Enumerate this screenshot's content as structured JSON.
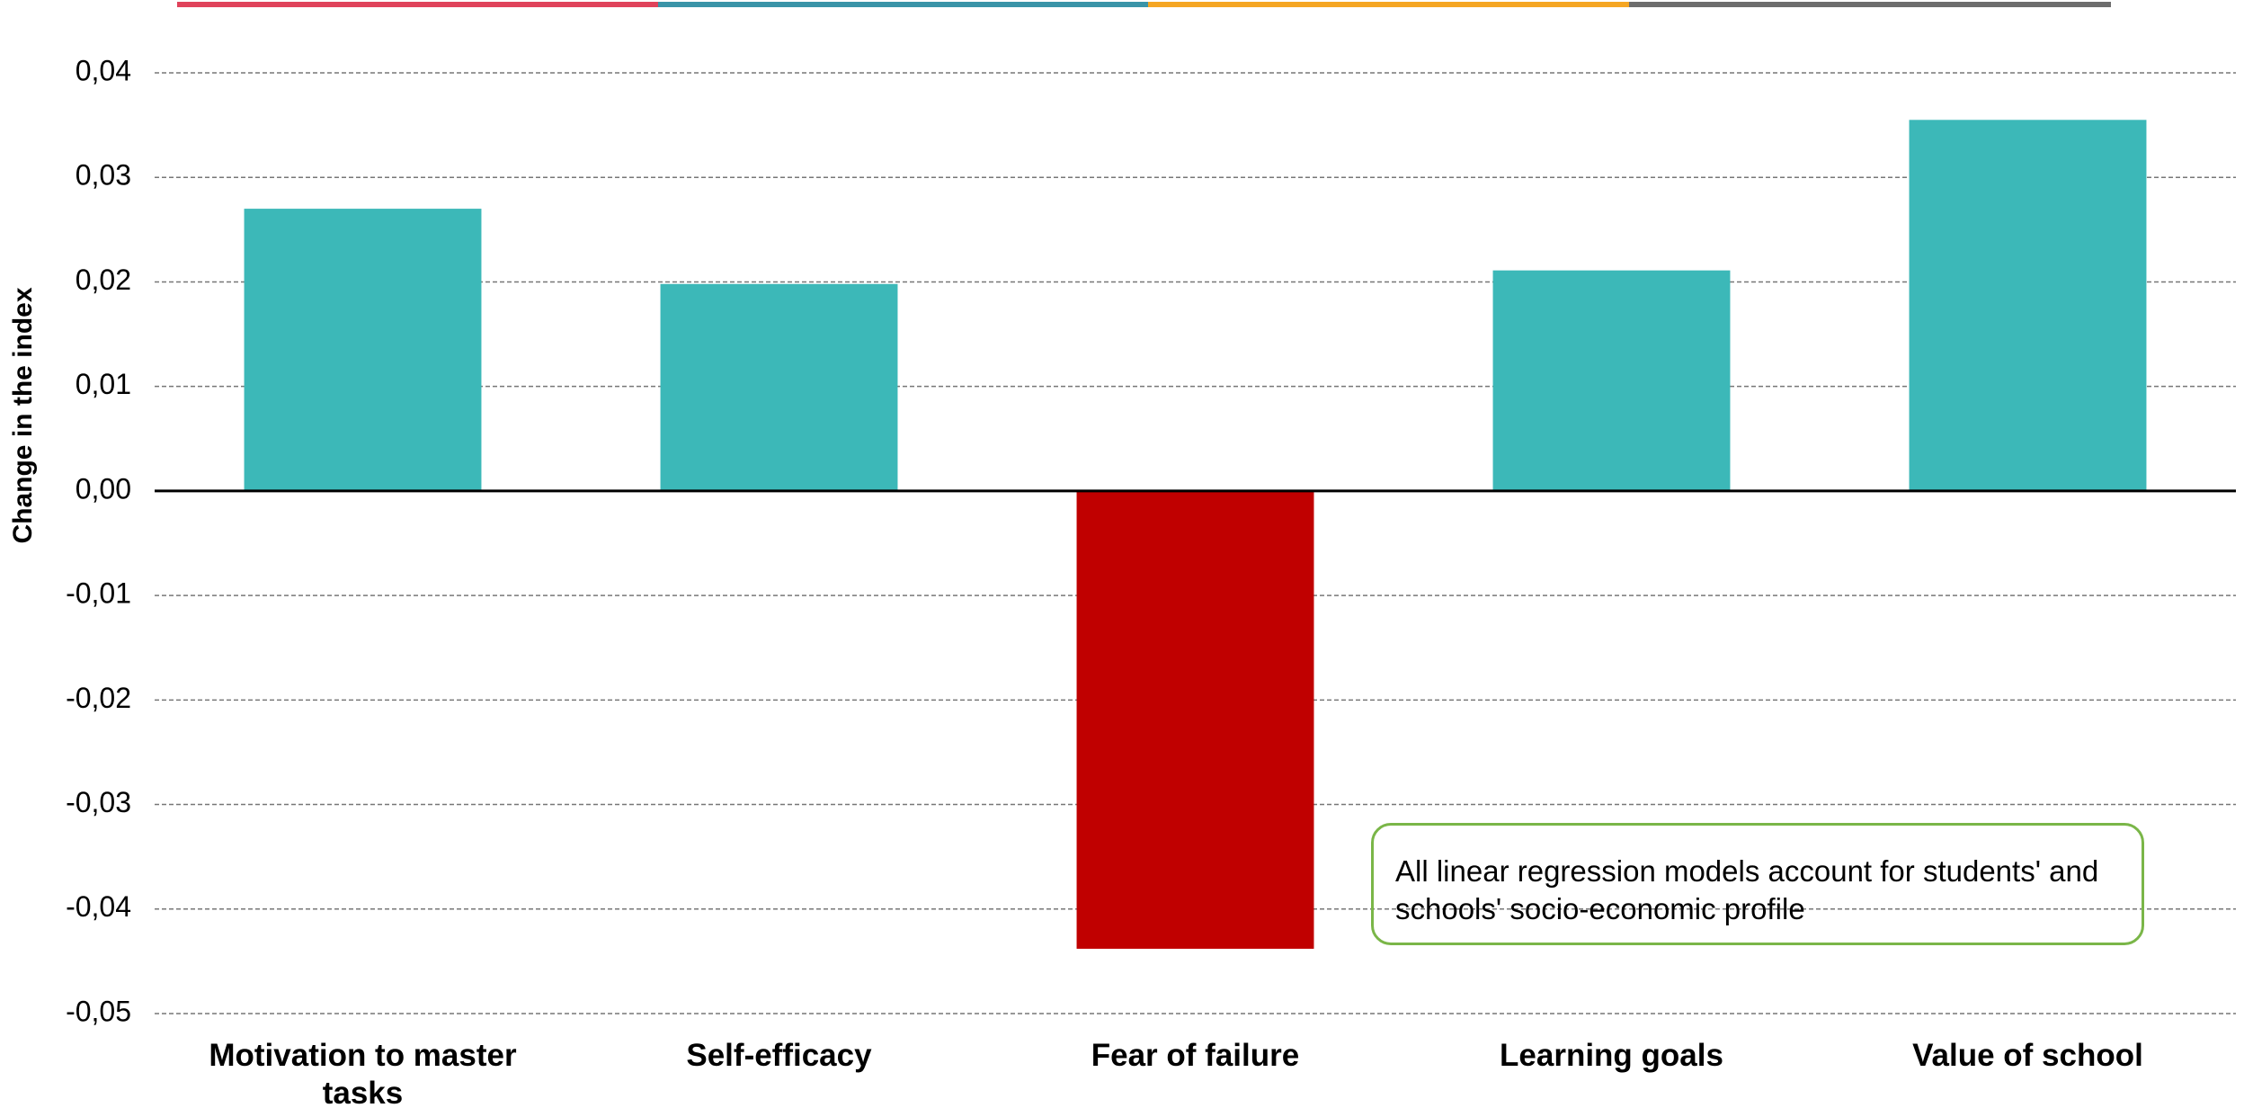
{
  "chart_data": {
    "type": "bar",
    "y_label": "Change in the index",
    "categories": [
      "Motivation to master tasks",
      "Self-efficacy",
      "Fear of failure",
      "Learning goals",
      "Value of school"
    ],
    "values": [
      0.027,
      0.0198,
      -0.0438,
      0.0211,
      0.0355
    ],
    "colors": [
      "#3cb8b8",
      "#3cb8b8",
      "#c00000",
      "#3cb8b8",
      "#3cb8b8"
    ],
    "ylim": [
      -0.05,
      0.04
    ],
    "yticks": [
      {
        "value": -0.05,
        "label": "-0,05"
      },
      {
        "value": -0.04,
        "label": "-0,04"
      },
      {
        "value": -0.03,
        "label": "-0,03"
      },
      {
        "value": -0.02,
        "label": "-0,02"
      },
      {
        "value": -0.01,
        "label": "-0,01"
      },
      {
        "value": 0,
        "label": "0,00"
      },
      {
        "value": 0.01,
        "label": "0,01"
      },
      {
        "value": 0.02,
        "label": "0,02"
      },
      {
        "value": 0.03,
        "label": "0,03"
      },
      {
        "value": 0.04,
        "label": "0,04"
      }
    ],
    "grid": true,
    "annotation": "All linear regression models account for students' and schools' socio-economic profile"
  }
}
